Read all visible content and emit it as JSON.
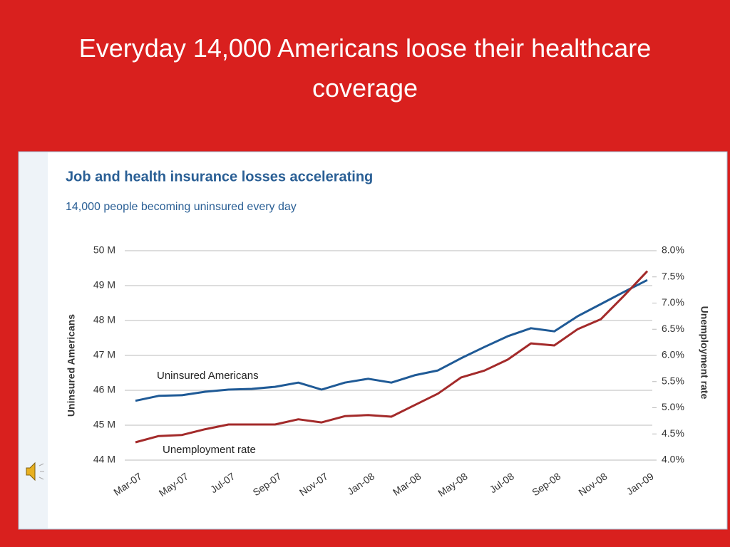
{
  "slide_title": "Everyday 14,000 Americans loose their healthcare coverage",
  "chart_data": {
    "type": "line",
    "title": "Job and health insurance losses accelerating",
    "subtitle": "14,000 people becoming uninsured every day",
    "ylabel": "Uninsured Americans",
    "y2label": "Unemployment rate",
    "categories": [
      "Mar-07",
      null,
      "May-07",
      null,
      "Jul-07",
      null,
      "Sep-07",
      null,
      "Nov-07",
      null,
      "Jan-08",
      null,
      "Mar-08",
      null,
      "May-08",
      null,
      "Jul-08",
      null,
      "Sep-08",
      null,
      "Nov-08",
      null,
      "Jan-09"
    ],
    "series": [
      {
        "name": "Uninsured Americans",
        "color": "#1f5a96",
        "values": [
          45.7,
          45.84,
          45.86,
          45.96,
          46.02,
          46.04,
          46.1,
          46.22,
          46.02,
          46.22,
          46.33,
          46.22,
          46.43,
          46.57,
          46.92,
          47.24,
          47.55,
          47.78,
          47.69,
          48.12,
          48.47,
          48.82,
          49.16
        ]
      },
      {
        "name": "Unemployment rate",
        "color": "#a32a2a",
        "axis": "y2",
        "values": [
          4.34,
          4.46,
          4.48,
          4.59,
          4.68,
          4.68,
          4.68,
          4.78,
          4.72,
          4.84,
          4.86,
          4.83,
          5.05,
          5.27,
          5.58,
          5.71,
          5.92,
          6.23,
          6.19,
          6.5,
          6.69,
          7.14,
          7.61
        ]
      }
    ],
    "ylim": [
      44,
      50
    ],
    "yticks": [
      {
        "value": 44,
        "label": "44 M"
      },
      {
        "value": 45,
        "label": "45 M"
      },
      {
        "value": 46,
        "label": "46 M"
      },
      {
        "value": 47,
        "label": "47 M"
      },
      {
        "value": 48,
        "label": "48 M"
      },
      {
        "value": 49,
        "label": "49 M"
      },
      {
        "value": 50,
        "label": "50 M"
      }
    ],
    "y2lim": [
      4,
      8
    ],
    "y2ticks": [
      {
        "value": 4,
        "label": "4.0%"
      },
      {
        "value": 4.5,
        "label": "4.5%"
      },
      {
        "value": 5,
        "label": "5.0%"
      },
      {
        "value": 5.5,
        "label": "5.5%"
      },
      {
        "value": 6,
        "label": "6.0%"
      },
      {
        "value": 6.5,
        "label": "6.5%"
      },
      {
        "value": 7,
        "label": "7.0%"
      },
      {
        "value": 7.5,
        "label": "7.5%"
      },
      {
        "value": 8,
        "label": "8.0%"
      }
    ],
    "grid": true
  }
}
